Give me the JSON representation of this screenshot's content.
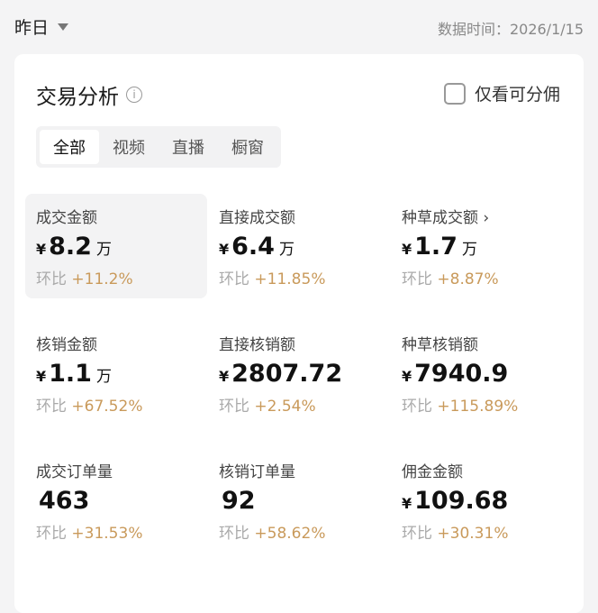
{
  "header": {
    "period": "昨日",
    "data_time": "数据时间：2026/1/15"
  },
  "card": {
    "title": "交易分析",
    "only_commission": "仅看可分佣",
    "tabs": [
      {
        "label": "全部",
        "active": true
      },
      {
        "label": "视频"
      },
      {
        "label": "直播"
      },
      {
        "label": "橱窗"
      }
    ],
    "metrics": [
      {
        "label": "成交金额",
        "currency": "¥",
        "value": "8.2",
        "unit": "万",
        "change_label": "环比",
        "change": "+11.2%"
      },
      {
        "label": "直接成交额",
        "currency": "¥",
        "value": "6.4",
        "unit": "万",
        "change_label": "环比",
        "change": "+11.85%"
      },
      {
        "label": "种草成交额 ›",
        "currency": "¥",
        "value": "1.7",
        "unit": "万",
        "change_label": "环比",
        "change": "+8.87%"
      },
      {
        "label": "核销金额",
        "currency": "¥",
        "value": "1.1",
        "unit": "万",
        "change_label": "环比",
        "change": "+67.52%"
      },
      {
        "label": "直接核销额",
        "currency": "¥",
        "value": "2807.72",
        "unit": "",
        "change_label": "环比",
        "change": "+2.54%"
      },
      {
        "label": "种草核销额",
        "currency": "¥",
        "value": "7940.9",
        "unit": "",
        "change_label": "环比",
        "change": "+115.89%"
      },
      {
        "label": "成交订单量",
        "currency": "",
        "value": "463",
        "unit": "",
        "change_label": "环比",
        "change": "+31.53%"
      },
      {
        "label": "核销订单量",
        "currency": "",
        "value": "92",
        "unit": "",
        "change_label": "环比",
        "change": "+58.62%"
      },
      {
        "label": "佣金金额",
        "currency": "¥",
        "value": "109.68",
        "unit": "",
        "change_label": "环比",
        "change": "+30.31%"
      }
    ]
  },
  "colors": {
    "positive": "#c99a5b"
  }
}
